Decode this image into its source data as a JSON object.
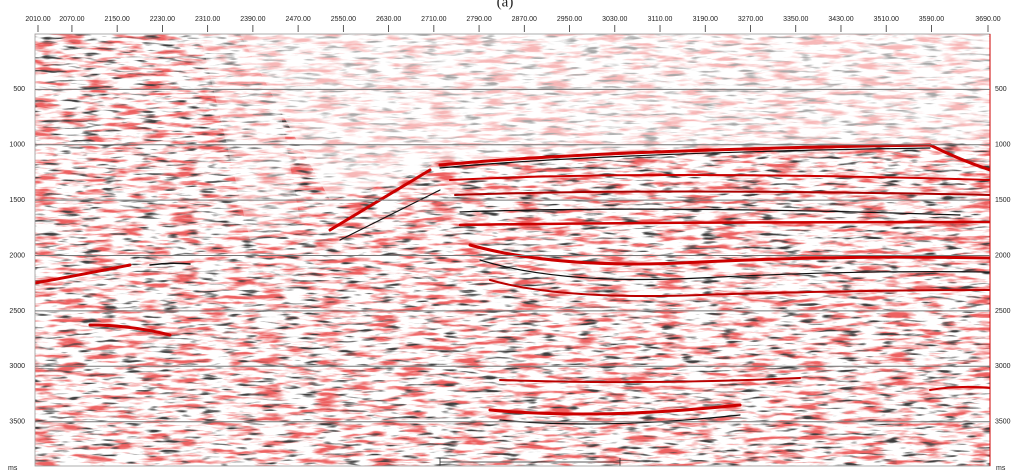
{
  "chart_data": {
    "type": "seismic",
    "title": "(a)",
    "y_unit": "ms",
    "xlim": [
      2010,
      3690
    ],
    "xticks": [
      {
        "value": 2010,
        "label": "2010.00"
      },
      {
        "value": 2070,
        "label": "2070.00"
      },
      {
        "value": 2150,
        "label": "2150.00"
      },
      {
        "value": 2230,
        "label": "2230.00"
      },
      {
        "value": 2310,
        "label": "2310.00"
      },
      {
        "value": 2390,
        "label": "2390.00"
      },
      {
        "value": 2470,
        "label": "2470.00"
      },
      {
        "value": 2550,
        "label": "2550.00"
      },
      {
        "value": 2630,
        "label": "2630.00"
      },
      {
        "value": 2710,
        "label": "2710.00"
      },
      {
        "value": 2790,
        "label": "2790.00"
      },
      {
        "value": 2870,
        "label": "2870.00"
      },
      {
        "value": 2950,
        "label": "2950.00"
      },
      {
        "value": 3030,
        "label": "3030.00"
      },
      {
        "value": 3110,
        "label": "3110.00"
      },
      {
        "value": 3190,
        "label": "3190.00"
      },
      {
        "value": 3270,
        "label": "3270.00"
      },
      {
        "value": 3350,
        "label": "3350.00"
      },
      {
        "value": 3430,
        "label": "3430.00"
      },
      {
        "value": 3510,
        "label": "3510.00"
      },
      {
        "value": 3590,
        "label": "3590.00"
      },
      {
        "value": 3690,
        "label": "3690.00"
      }
    ],
    "ylim": [
      0,
      3900
    ],
    "yticks": [
      500,
      1000,
      1500,
      2000,
      2500,
      3000,
      3500
    ],
    "grid": true
  }
}
